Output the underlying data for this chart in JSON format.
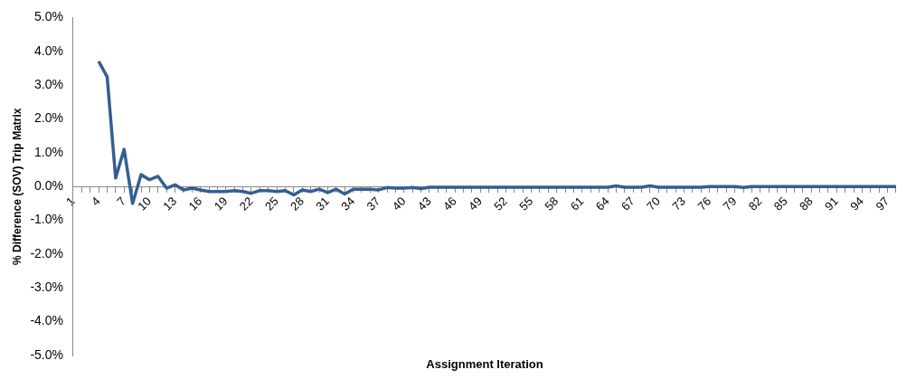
{
  "chart_data": {
    "type": "line",
    "xlabel": "Assignment Iteration",
    "ylabel": "% Difference (SOV) Trip Matrix",
    "categories": [
      "1",
      null,
      null,
      "4",
      null,
      null,
      "7",
      null,
      null,
      "10",
      null,
      null,
      "13",
      null,
      null,
      "16",
      null,
      null,
      "19",
      null,
      null,
      "22",
      null,
      null,
      "25",
      null,
      null,
      "28",
      null,
      null,
      "31",
      null,
      null,
      "34",
      null,
      null,
      "37",
      null,
      null,
      "40",
      null,
      null,
      "43",
      null,
      null,
      "46",
      null,
      null,
      "49",
      null,
      null,
      "52",
      null,
      null,
      "55",
      null,
      null,
      "58",
      null,
      null,
      "61",
      null,
      null,
      "64",
      null,
      null,
      "67",
      null,
      null,
      "70",
      null,
      null,
      "73",
      null,
      null,
      "76",
      null,
      null,
      "79",
      null,
      null,
      "82",
      null,
      null,
      "85",
      null,
      null,
      "88",
      null,
      null,
      "91",
      null,
      null,
      "94",
      null,
      null,
      "97",
      null
    ],
    "series": [
      {
        "color": "#355e91",
        "values": [
          null,
          null,
          null,
          3.7,
          3.25,
          0.25,
          1.1,
          -0.5,
          0.35,
          0.2,
          0.3,
          -0.05,
          0.05,
          -0.1,
          -0.05,
          -0.1,
          -0.15,
          -0.15,
          -0.15,
          -0.12,
          -0.15,
          -0.2,
          -0.12,
          -0.12,
          -0.15,
          -0.12,
          -0.25,
          -0.1,
          -0.15,
          -0.08,
          -0.18,
          -0.08,
          -0.22,
          -0.08,
          -0.08,
          -0.08,
          -0.1,
          -0.03,
          -0.05,
          -0.05,
          -0.03,
          -0.06,
          -0.02,
          -0.02,
          -0.02,
          -0.02,
          -0.02,
          -0.02,
          -0.02,
          -0.02,
          -0.02,
          -0.02,
          -0.02,
          -0.02,
          -0.02,
          -0.02,
          -0.02,
          -0.02,
          -0.02,
          -0.02,
          -0.02,
          -0.02,
          -0.02,
          -0.02,
          0.02,
          -0.02,
          -0.02,
          -0.02,
          0.02,
          -0.02,
          -0.02,
          -0.02,
          -0.02,
          -0.02,
          -0.02,
          0,
          0,
          0,
          0,
          -0.03,
          0,
          0,
          0,
          0,
          0,
          0,
          0,
          0,
          0,
          0,
          0,
          0,
          0,
          0,
          0,
          0,
          0,
          0
        ]
      }
    ],
    "ylim": [
      -5,
      5
    ],
    "yticks": [
      {
        "value": -5,
        "label": "-5.0%"
      },
      {
        "value": -4,
        "label": "-4.0%"
      },
      {
        "value": -3,
        "label": "-3.0%"
      },
      {
        "value": -2,
        "label": "-2.0%"
      },
      {
        "value": -1,
        "label": "-1.0%"
      },
      {
        "value": 0,
        "label": "0.0%"
      },
      {
        "value": 1,
        "label": "1.0%"
      },
      {
        "value": 2,
        "label": "2.0%"
      },
      {
        "value": 3,
        "label": "3.0%"
      },
      {
        "value": 4,
        "label": "4.0%"
      },
      {
        "value": 5,
        "label": "5.0%"
      }
    ],
    "marker": "none",
    "line_style": "solid"
  }
}
